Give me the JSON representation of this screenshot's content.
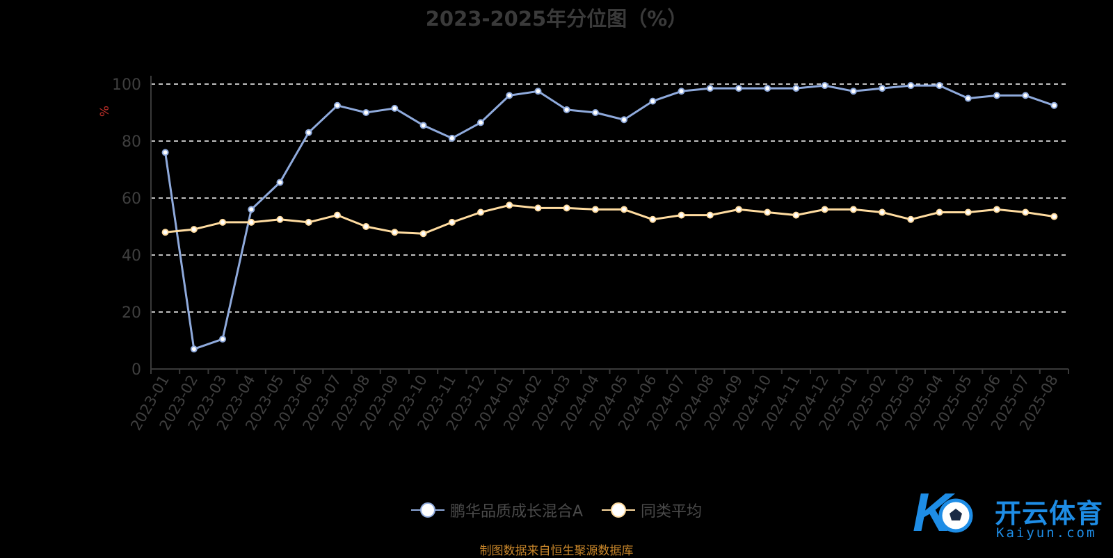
{
  "chart_data": {
    "type": "line",
    "title": "2023-2025年分位图（%）",
    "ylabel": "%",
    "ylim": [
      0,
      100
    ],
    "yticks": [
      0,
      20,
      40,
      60,
      80,
      100
    ],
    "grid": "horizontal dashed",
    "legend_position": "bottom",
    "categories": [
      "2023-01",
      "2023-02",
      "2023-03",
      "2023-04",
      "2023-05",
      "2023-06",
      "2023-07",
      "2023-08",
      "2023-09",
      "2023-10",
      "2023-11",
      "2023-12",
      "2024-01",
      "2024-02",
      "2024-03",
      "2024-04",
      "2024-05",
      "2024-06",
      "2024-07",
      "2024-08",
      "2024-09",
      "2024-10",
      "2024-11",
      "2024-12",
      "2025-01",
      "2025-02",
      "2025-03",
      "2025-04",
      "2025-05",
      "2025-06",
      "2025-07",
      "2025-08"
    ],
    "series": [
      {
        "name": "鹏华品质成长混合A",
        "color": "#8faadc",
        "values": [
          76,
          7,
          10.5,
          56,
          65.5,
          83,
          92.5,
          90,
          91.5,
          85.5,
          81,
          86.5,
          96,
          97.5,
          91,
          90,
          87.5,
          94,
          97.5,
          98.5,
          98.5,
          98.5,
          98.5,
          99.5,
          97.5,
          98.5,
          99.5,
          99.5,
          95,
          96,
          96,
          92.5
        ]
      },
      {
        "name": "同类平均",
        "color": "#ffdca0",
        "values": [
          48,
          49,
          51.5,
          51.5,
          52.5,
          51.5,
          54,
          50,
          48,
          47.5,
          51.5,
          55,
          57.5,
          56.5,
          56.5,
          56,
          56,
          52.5,
          54,
          54,
          56,
          55,
          54,
          56,
          56,
          55,
          52.5,
          55,
          55,
          56,
          55,
          53.5
        ]
      }
    ]
  },
  "source": "制图数据来自恒生聚源数据库",
  "logo": {
    "text": "开云体育",
    "sub": "Kaiyun.com"
  }
}
